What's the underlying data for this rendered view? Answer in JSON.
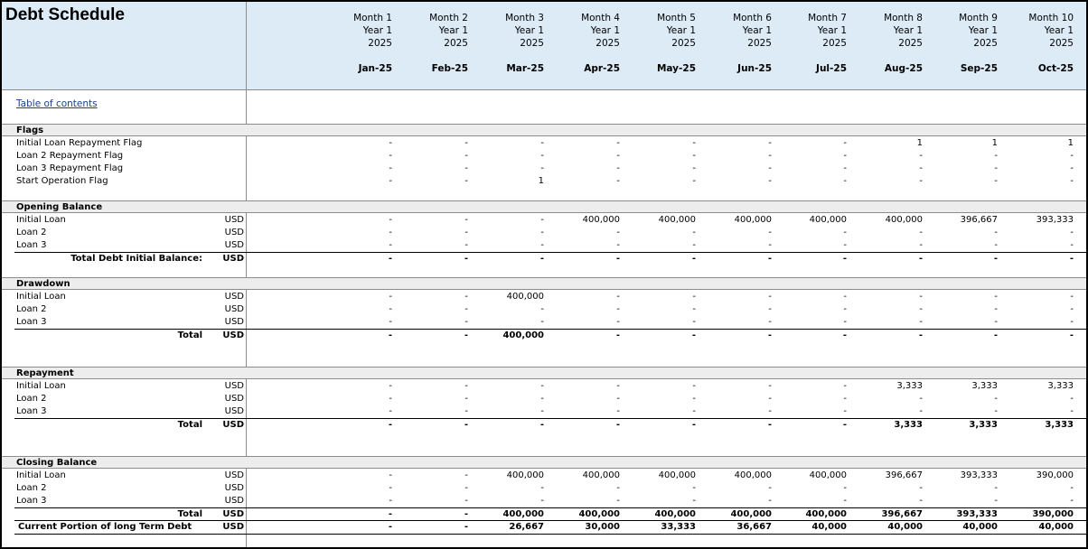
{
  "title": "Debt Schedule",
  "toc_link": "Table of contents",
  "months": [
    {
      "month": "Month 1",
      "year": "Year 1",
      "yr": "2025",
      "label": "Jan-25"
    },
    {
      "month": "Month 2",
      "year": "Year 1",
      "yr": "2025",
      "label": "Feb-25"
    },
    {
      "month": "Month 3",
      "year": "Year 1",
      "yr": "2025",
      "label": "Mar-25"
    },
    {
      "month": "Month 4",
      "year": "Year 1",
      "yr": "2025",
      "label": "Apr-25"
    },
    {
      "month": "Month 5",
      "year": "Year 1",
      "yr": "2025",
      "label": "May-25"
    },
    {
      "month": "Month 6",
      "year": "Year 1",
      "yr": "2025",
      "label": "Jun-25"
    },
    {
      "month": "Month 7",
      "year": "Year 1",
      "yr": "2025",
      "label": "Jul-25"
    },
    {
      "month": "Month 8",
      "year": "Year 1",
      "yr": "2025",
      "label": "Aug-25"
    },
    {
      "month": "Month 9",
      "year": "Year 1",
      "yr": "2025",
      "label": "Sep-25"
    },
    {
      "month": "Month 10",
      "year": "Year 1",
      "yr": "2025",
      "label": "Oct-25"
    }
  ],
  "sections": [
    {
      "name": "Flags",
      "rows": [
        {
          "label": "Initial Loan Repayment Flag",
          "unit": "",
          "values": [
            "-",
            "-",
            "-",
            "-",
            "-",
            "-",
            "-",
            "1",
            "1",
            "1"
          ]
        },
        {
          "label": "Loan 2 Repayment Flag",
          "unit": "",
          "values": [
            "-",
            "-",
            "-",
            "-",
            "-",
            "-",
            "-",
            "-",
            "-",
            "-"
          ]
        },
        {
          "label": "Loan 3 Repayment Flag",
          "unit": "",
          "values": [
            "-",
            "-",
            "-",
            "-",
            "-",
            "-",
            "-",
            "-",
            "-",
            "-"
          ]
        },
        {
          "label": "Start Operation Flag",
          "unit": "",
          "values": [
            "-",
            "-",
            "1",
            "-",
            "-",
            "-",
            "-",
            "-",
            "-",
            "-"
          ]
        }
      ]
    },
    {
      "name": "Opening Balance",
      "rows": [
        {
          "label": "Initial Loan",
          "unit": "USD",
          "values": [
            "-",
            "-",
            "-",
            "400,000",
            "400,000",
            "400,000",
            "400,000",
            "400,000",
            "396,667",
            "393,333"
          ]
        },
        {
          "label": "Loan 2",
          "unit": "USD",
          "values": [
            "-",
            "-",
            "-",
            "-",
            "-",
            "-",
            "-",
            "-",
            "-",
            "-"
          ]
        },
        {
          "label": "Loan 3",
          "unit": "USD",
          "values": [
            "-",
            "-",
            "-",
            "-",
            "-",
            "-",
            "-",
            "-",
            "-",
            "-"
          ]
        }
      ],
      "total": {
        "label": "Total Debt Initial Balance:",
        "unit": "USD",
        "values": [
          "-",
          "-",
          "-",
          "-",
          "-",
          "-",
          "-",
          "-",
          "-",
          "-"
        ]
      }
    },
    {
      "name": "Drawdown",
      "rows": [
        {
          "label": "Initial Loan",
          "unit": "USD",
          "values": [
            "-",
            "-",
            "400,000",
            "-",
            "-",
            "-",
            "-",
            "-",
            "-",
            "-"
          ]
        },
        {
          "label": "Loan 2",
          "unit": "USD",
          "values": [
            "-",
            "-",
            "-",
            "-",
            "-",
            "-",
            "-",
            "-",
            "-",
            "-"
          ]
        },
        {
          "label": "Loan 3",
          "unit": "USD",
          "values": [
            "-",
            "-",
            "-",
            "-",
            "-",
            "-",
            "-",
            "-",
            "-",
            "-"
          ]
        }
      ],
      "total": {
        "label": "Total",
        "unit": "USD",
        "values": [
          "-",
          "-",
          "400,000",
          "-",
          "-",
          "-",
          "-",
          "-",
          "-",
          "-"
        ]
      }
    },
    {
      "name": "Repayment",
      "rows": [
        {
          "label": "Initial Loan",
          "unit": "USD",
          "values": [
            "-",
            "-",
            "-",
            "-",
            "-",
            "-",
            "-",
            "3,333",
            "3,333",
            "3,333"
          ]
        },
        {
          "label": "Loan 2",
          "unit": "USD",
          "values": [
            "-",
            "-",
            "-",
            "-",
            "-",
            "-",
            "-",
            "-",
            "-",
            "-"
          ]
        },
        {
          "label": "Loan 3",
          "unit": "USD",
          "values": [
            "-",
            "-",
            "-",
            "-",
            "-",
            "-",
            "-",
            "-",
            "-",
            "-"
          ]
        }
      ],
      "total": {
        "label": "Total",
        "unit": "USD",
        "values": [
          "-",
          "-",
          "-",
          "-",
          "-",
          "-",
          "-",
          "3,333",
          "3,333",
          "3,333"
        ]
      }
    },
    {
      "name": "Closing Balance",
      "rows": [
        {
          "label": "Initial Loan",
          "unit": "USD",
          "values": [
            "-",
            "-",
            "400,000",
            "400,000",
            "400,000",
            "400,000",
            "400,000",
            "396,667",
            "393,333",
            "390,000"
          ]
        },
        {
          "label": "Loan 2",
          "unit": "USD",
          "values": [
            "-",
            "-",
            "-",
            "-",
            "-",
            "-",
            "-",
            "-",
            "-",
            "-"
          ]
        },
        {
          "label": "Loan 3",
          "unit": "USD",
          "values": [
            "-",
            "-",
            "-",
            "-",
            "-",
            "-",
            "-",
            "-",
            "-",
            "-"
          ]
        }
      ],
      "total": {
        "label": "Total",
        "unit": "USD",
        "values": [
          "-",
          "-",
          "400,000",
          "400,000",
          "400,000",
          "400,000",
          "400,000",
          "396,667",
          "393,333",
          "390,000"
        ]
      }
    }
  ],
  "current_portion": {
    "label": "Current Portion of long Term Debt",
    "unit": "USD",
    "values": [
      "-",
      "-",
      "26,667",
      "30,000",
      "33,333",
      "36,667",
      "40,000",
      "40,000",
      "40,000",
      "40,000"
    ]
  }
}
